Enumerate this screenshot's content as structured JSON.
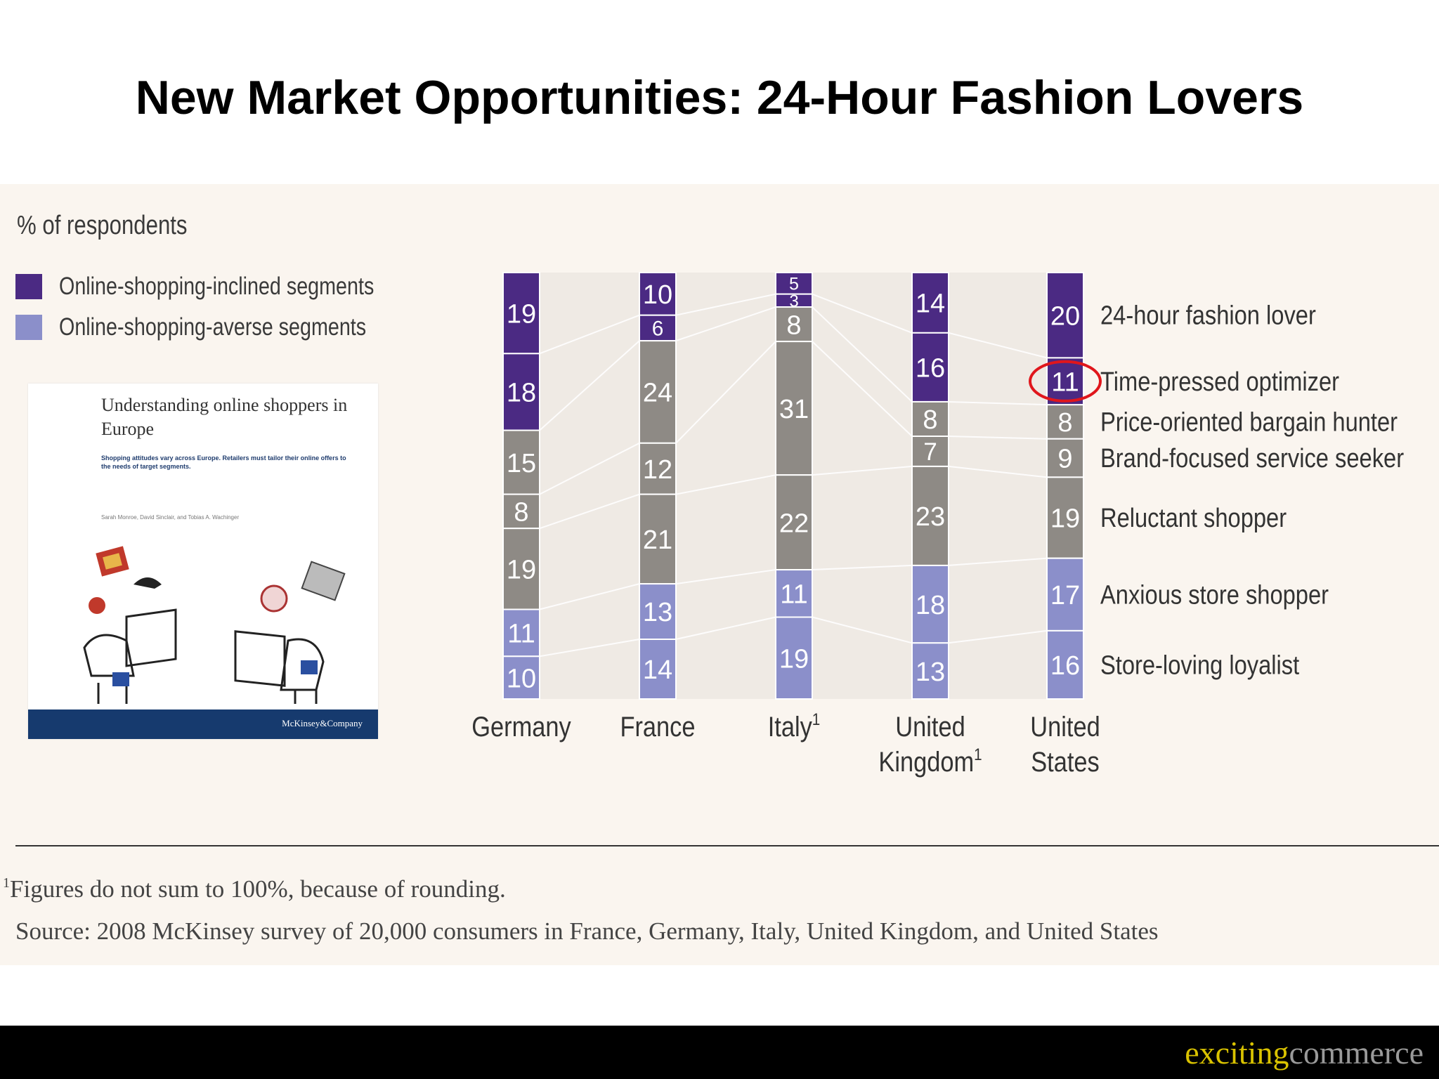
{
  "slide": {
    "title": "New Market Opportunities: 24-Hour Fashion Lovers",
    "brand_part1": "exciting",
    "brand_part2": "commerce"
  },
  "legend": {
    "caption": "% of respondents",
    "items": [
      {
        "label": "Online-shopping-inclined segments",
        "color": "#4b2a83"
      },
      {
        "label": "Online-shopping-averse segments",
        "color": "#8b8fca"
      }
    ]
  },
  "report": {
    "title": "Understanding online shoppers in Europe",
    "subtitle": "Shopping attitudes vary across Europe. Retailers must tailor their online offers to the needs of target segments.",
    "authors": "Sarah Monroe, David Sinclair, and Tobias A. Wachinger",
    "publisher": "McKinsey&Company"
  },
  "chart_data": {
    "type": "bar",
    "stacked": true,
    "categories": [
      "Germany",
      "France",
      "Italy",
      "United Kingdom",
      "United States"
    ],
    "category_superscripts": [
      "",
      "",
      "1",
      "1",
      ""
    ],
    "series": [
      {
        "name": "24-hour fashion lover",
        "group": "inclined",
        "color": "#4b2a83",
        "values": [
          19,
          10,
          5,
          14,
          20
        ]
      },
      {
        "name": "Time-pressed optimizer",
        "group": "inclined",
        "color": "#4b2a83",
        "values": [
          18,
          6,
          3,
          16,
          11
        ]
      },
      {
        "name": "Price-oriented bargain hunter",
        "group": "neutral",
        "color": "#8e8a85",
        "values": [
          15,
          24,
          8,
          8,
          8
        ]
      },
      {
        "name": "Brand-focused service seeker",
        "group": "neutral",
        "color": "#8e8a85",
        "values": [
          8,
          12,
          31,
          7,
          9
        ]
      },
      {
        "name": "Reluctant shopper",
        "group": "neutral",
        "color": "#8e8a85",
        "values": [
          19,
          21,
          22,
          23,
          19
        ]
      },
      {
        "name": "Anxious store shopper",
        "group": "averse",
        "color": "#8b8fca",
        "values": [
          11,
          13,
          11,
          18,
          17
        ]
      },
      {
        "name": "Store-loving loyalist",
        "group": "averse",
        "color": "#8b8fca",
        "values": [
          10,
          14,
          19,
          13,
          16
        ]
      }
    ],
    "highlight": {
      "category": "United States",
      "series": "Time-pressed optimizer",
      "color": "#e0161c"
    },
    "ylim": [
      0,
      100
    ]
  },
  "footnotes": {
    "marker": "1",
    "note": "Figures do not sum to 100%, because of rounding.",
    "source": "Source: 2008 McKinsey survey of 20,000 consumers in France, Germany, Italy, United Kingdom, and United States"
  }
}
